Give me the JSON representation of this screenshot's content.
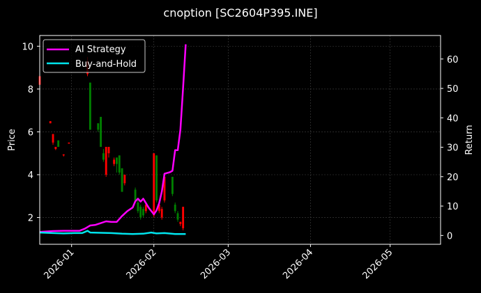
{
  "chart_data": {
    "type": "line",
    "title": "cnoption [SC2604P395.INE]",
    "ylabel": "Price",
    "y2label": "Return",
    "ylim": [
      0.75,
      10.5
    ],
    "y2lim": [
      -3,
      68
    ],
    "xlim": [
      "2025-12-20",
      "2026-05-20"
    ],
    "yticks": [
      2,
      4,
      6,
      8,
      10
    ],
    "y2ticks": [
      0,
      10,
      20,
      30,
      40,
      50,
      60
    ],
    "xticks": [
      "2026-01",
      "2026-02",
      "2026-03",
      "2026-04",
      "2026-05"
    ],
    "xtick_dates": [
      "2026-01-01",
      "2026-02-01",
      "2026-03-01",
      "2026-04-01",
      "2026-05-01"
    ],
    "grid": true,
    "legend_position": "top-left",
    "colors": {
      "up": "#008000",
      "down": "#ff0000",
      "ai": "#ff00ff",
      "bh": "#00e5ee",
      "grid": "#444444"
    },
    "candles": [
      {
        "date": "2025-12-20",
        "open": 8.6,
        "close": 8.2,
        "high": 8.8,
        "low": 8.1
      },
      {
        "date": "2025-12-24",
        "open": 6.5,
        "close": 6.4,
        "high": 6.5,
        "low": 6.4
      },
      {
        "date": "2025-12-25",
        "open": 5.9,
        "close": 5.5,
        "high": 5.9,
        "low": 5.4
      },
      {
        "date": "2025-12-26",
        "open": 5.3,
        "close": 5.2,
        "high": 5.3,
        "low": 5.15
      },
      {
        "date": "2025-12-27",
        "open": 5.3,
        "close": 5.6,
        "high": 5.6,
        "low": 5.3
      },
      {
        "date": "2025-12-29",
        "open": 4.95,
        "close": 4.9,
        "high": 4.95,
        "low": 4.85
      },
      {
        "date": "2025-12-31",
        "open": 5.5,
        "close": 5.45,
        "high": 5.5,
        "low": 5.45
      },
      {
        "date": "2026-01-07",
        "open": 9.3,
        "close": 8.7,
        "high": 9.5,
        "low": 8.6
      },
      {
        "date": "2026-01-08",
        "open": 6.1,
        "close": 8.3,
        "high": 8.3,
        "low": 6.1
      },
      {
        "date": "2026-01-11",
        "open": 6.1,
        "close": 6.4,
        "high": 6.4,
        "low": 6.0
      },
      {
        "date": "2026-01-12",
        "open": 5.3,
        "close": 6.7,
        "high": 6.7,
        "low": 5.3
      },
      {
        "date": "2026-01-13",
        "open": 4.7,
        "close": 5.0,
        "high": 5.2,
        "low": 4.6
      },
      {
        "date": "2026-01-14",
        "open": 5.3,
        "close": 4.0,
        "high": 5.3,
        "low": 3.9
      },
      {
        "date": "2026-01-15",
        "open": 5.3,
        "close": 5.0,
        "high": 5.3,
        "low": 4.8
      },
      {
        "date": "2026-01-17",
        "open": 4.7,
        "close": 4.5,
        "high": 4.8,
        "low": 4.4
      },
      {
        "date": "2026-01-18",
        "open": 4.5,
        "close": 4.8,
        "high": 4.8,
        "low": 4.1
      },
      {
        "date": "2026-01-19",
        "open": 4.1,
        "close": 4.9,
        "high": 4.9,
        "low": 4.0
      },
      {
        "date": "2026-01-20",
        "open": 3.2,
        "close": 4.3,
        "high": 4.3,
        "low": 3.2
      },
      {
        "date": "2026-01-21",
        "open": 4.0,
        "close": 3.6,
        "high": 4.0,
        "low": 3.5
      },
      {
        "date": "2026-01-25",
        "open": 2.8,
        "close": 3.3,
        "high": 3.4,
        "low": 2.7
      },
      {
        "date": "2026-01-26",
        "open": 2.3,
        "close": 2.7,
        "high": 2.8,
        "low": 2.2
      },
      {
        "date": "2026-01-27",
        "open": 2.0,
        "close": 2.5,
        "high": 2.6,
        "low": 1.9
      },
      {
        "date": "2026-01-28",
        "open": 2.1,
        "close": 2.4,
        "high": 2.5,
        "low": 2.0
      },
      {
        "date": "2026-01-29",
        "open": 2.6,
        "close": 2.3,
        "high": 2.7,
        "low": 2.2
      },
      {
        "date": "2026-02-01",
        "open": 5.0,
        "close": 2.1,
        "high": 5.0,
        "low": 2.0
      },
      {
        "date": "2026-02-02",
        "open": 2.8,
        "close": 4.9,
        "high": 4.9,
        "low": 2.7
      },
      {
        "date": "2026-02-03",
        "open": 2.6,
        "close": 2.3,
        "high": 2.7,
        "low": 2.2
      },
      {
        "date": "2026-02-04",
        "open": 2.4,
        "close": 2.0,
        "high": 2.5,
        "low": 1.9
      },
      {
        "date": "2026-02-05",
        "open": 3.9,
        "close": 2.8,
        "high": 4.0,
        "low": 2.7
      },
      {
        "date": "2026-02-08",
        "open": 3.1,
        "close": 3.9,
        "high": 3.9,
        "low": 3.0
      },
      {
        "date": "2026-02-09",
        "open": 2.3,
        "close": 2.6,
        "high": 2.7,
        "low": 2.2
      },
      {
        "date": "2026-02-10",
        "open": 1.9,
        "close": 2.2,
        "high": 2.3,
        "low": 1.8
      },
      {
        "date": "2026-02-11",
        "open": 1.8,
        "close": 1.7,
        "high": 1.8,
        "low": 1.6
      },
      {
        "date": "2026-02-12",
        "open": 2.5,
        "close": 1.5,
        "high": 2.5,
        "low": 1.4
      }
    ],
    "series": [
      {
        "name": "AI Strategy",
        "x": [
          "2025-12-20",
          "2025-12-25",
          "2025-12-29",
          "2026-01-02",
          "2026-01-04",
          "2026-01-06",
          "2026-01-08",
          "2026-01-10",
          "2026-01-12",
          "2026-01-14",
          "2026-01-16",
          "2026-01-18",
          "2026-01-20",
          "2026-01-22",
          "2026-01-24",
          "2026-01-25",
          "2026-01-26",
          "2026-01-27",
          "2026-01-28",
          "2026-01-29",
          "2026-01-30",
          "2026-02-01",
          "2026-02-02",
          "2026-02-03",
          "2026-02-04",
          "2026-02-05",
          "2026-02-07",
          "2026-02-08",
          "2026-02-09",
          "2026-02-10",
          "2026-02-11",
          "2026-02-12",
          "2026-02-13"
        ],
        "values": [
          1.2,
          1.5,
          1.6,
          1.6,
          1.6,
          2.3,
          3.4,
          3.6,
          4.2,
          4.8,
          4.6,
          4.6,
          6.6,
          8.3,
          9.5,
          11.6,
          12.5,
          11.5,
          12.5,
          11.0,
          9.5,
          7.2,
          8.5,
          11.0,
          15.0,
          21.0,
          21.5,
          22.0,
          29.0,
          29.0,
          36.0,
          50.0,
          65.0
        ]
      },
      {
        "name": "Buy-and-Hold",
        "x": [
          "2025-12-20",
          "2025-12-25",
          "2025-12-29",
          "2026-01-02",
          "2026-01-05",
          "2026-01-06",
          "2026-01-07",
          "2026-01-08",
          "2026-01-12",
          "2026-01-16",
          "2026-01-20",
          "2026-01-24",
          "2026-01-28",
          "2026-01-31",
          "2026-02-02",
          "2026-02-05",
          "2026-02-09",
          "2026-02-13"
        ],
        "values": [
          1.0,
          0.8,
          0.7,
          0.8,
          0.8,
          1.2,
          1.6,
          1.0,
          0.9,
          0.8,
          0.6,
          0.5,
          0.6,
          1.0,
          0.7,
          0.8,
          0.5,
          0.5
        ]
      }
    ]
  }
}
